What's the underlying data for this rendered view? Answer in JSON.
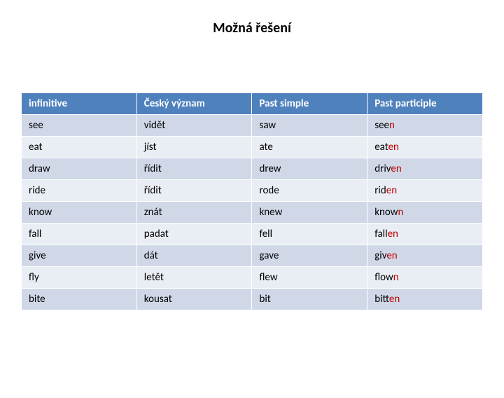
{
  "title": "Možná řešení",
  "table": {
    "type": "table",
    "header_bg": "#4f81bd",
    "header_fg": "#ffffff",
    "row_alt_bg": [
      "#d0d8e8",
      "#e9edf4"
    ],
    "border_color": "#ffffff",
    "font_size": 15,
    "columns": [
      {
        "label": "infinitive",
        "width": 165
      },
      {
        "label": "Český význam",
        "width": 165
      },
      {
        "label": "Past simple",
        "width": 165
      },
      {
        "label": "Past participle",
        "width": 165
      }
    ],
    "rows": [
      {
        "inf": "see",
        "cz": "vidět",
        "ps": "saw",
        "pp_pre": "see",
        "pp_hl": "n",
        "pp_post": ""
      },
      {
        "inf": "eat",
        "cz": "jíst",
        "ps": "ate",
        "pp_pre": "eat",
        "pp_hl": "en",
        "pp_post": ""
      },
      {
        "inf": "draw",
        "cz": "řídit",
        "ps": "drew",
        "pp_pre": "driv",
        "pp_hl": "en",
        "pp_post": ""
      },
      {
        "inf": "ride",
        "cz": "řídit",
        "ps": "rode",
        "pp_pre": "rid",
        "pp_hl": "en",
        "pp_post": ""
      },
      {
        "inf": "know",
        "cz": "znát",
        "ps": "knew",
        "pp_pre": "know",
        "pp_hl": "n",
        "pp_post": ""
      },
      {
        "inf": "fall",
        "cz": "padat",
        "ps": "fell",
        "pp_pre": "fall",
        "pp_hl": "en",
        "pp_post": ""
      },
      {
        "inf": "give",
        "cz": "dát",
        "ps": "gave",
        "pp_pre": "giv",
        "pp_hl": "en",
        "pp_post": ""
      },
      {
        "inf": "fly",
        "cz": "letět",
        "ps": "flew",
        "pp_pre": "flow",
        "pp_hl": "n",
        "pp_post": ""
      },
      {
        "inf": "bite",
        "cz": "kousat",
        "ps": "bit",
        "pp_pre": "bitt",
        "pp_hl": "en",
        "pp_post": ""
      }
    ]
  }
}
